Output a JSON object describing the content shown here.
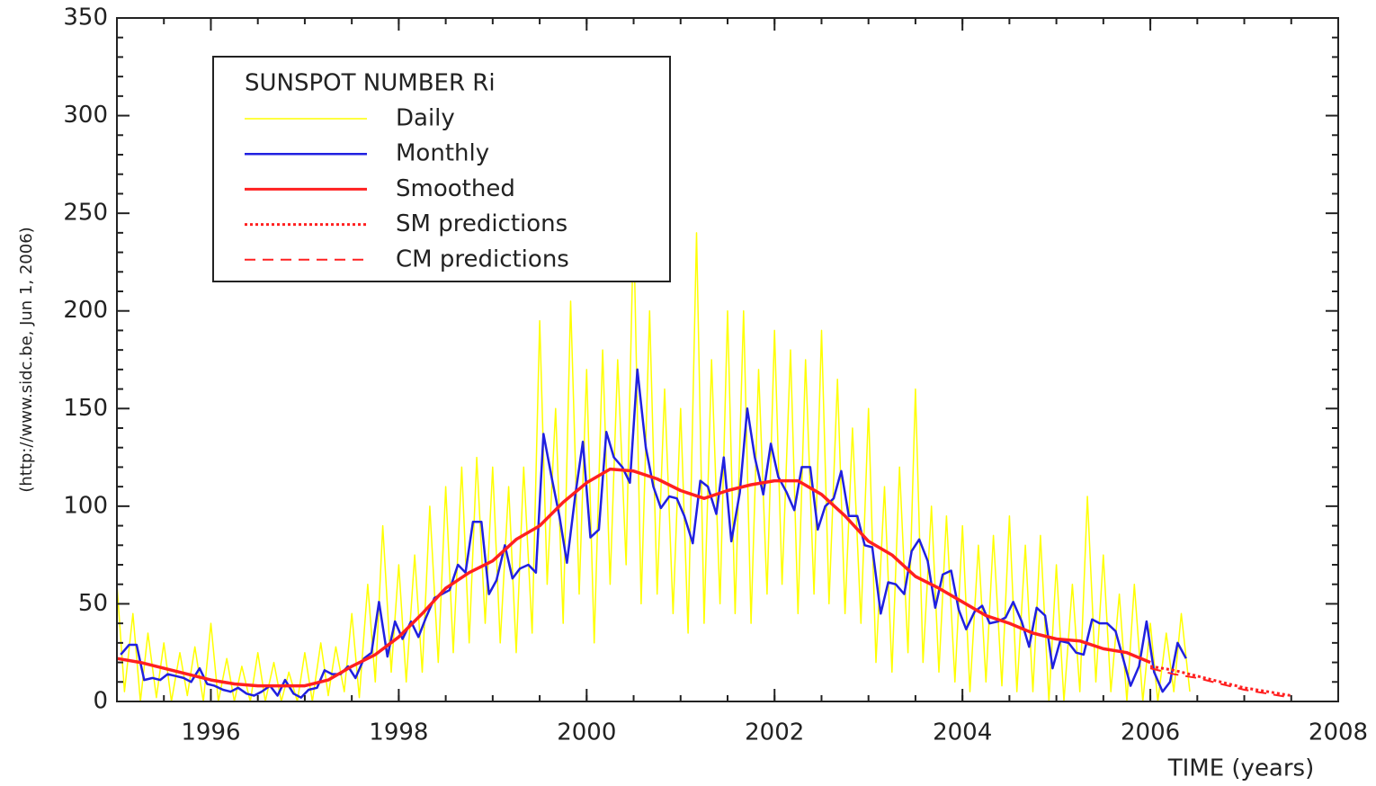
{
  "chart_data": {
    "type": "line",
    "legend_title": "SUNSPOT NUMBER Ri",
    "x_label": "TIME (years)",
    "y_label": "(http://www.sidc.be, Jun  1, 2006)",
    "xlim": [
      1995,
      2008
    ],
    "ylim": [
      0,
      350
    ],
    "xticks": [
      1996,
      1998,
      2000,
      2002,
      2004,
      2006,
      2008
    ],
    "yticks": [
      0,
      50,
      100,
      150,
      200,
      250,
      300,
      350
    ],
    "legend": "upper left",
    "series": [
      {
        "name": "Daily",
        "color": "#ffff00",
        "style": "solid",
        "width": 1.5,
        "x": [
          1995,
          1995.08,
          1995.17,
          1995.25,
          1995.33,
          1995.42,
          1995.5,
          1995.58,
          1995.67,
          1995.75,
          1995.83,
          1995.92,
          1996,
          1996.08,
          1996.17,
          1996.25,
          1996.33,
          1996.42,
          1996.5,
          1996.58,
          1996.67,
          1996.75,
          1996.83,
          1996.92,
          1997,
          1997.08,
          1997.17,
          1997.25,
          1997.33,
          1997.42,
          1997.5,
          1997.58,
          1997.67,
          1997.75,
          1997.83,
          1997.92,
          1998,
          1998.08,
          1998.17,
          1998.25,
          1998.33,
          1998.42,
          1998.5,
          1998.58,
          1998.67,
          1998.75,
          1998.83,
          1998.92,
          1999,
          1999.08,
          1999.17,
          1999.25,
          1999.33,
          1999.42,
          1999.5,
          1999.58,
          1999.67,
          1999.75,
          1999.83,
          1999.92,
          2000,
          2000.08,
          2000.17,
          2000.25,
          2000.33,
          2000.42,
          2000.5,
          2000.58,
          2000.67,
          2000.75,
          2000.83,
          2000.92,
          2001,
          2001.08,
          2001.17,
          2001.25,
          2001.33,
          2001.42,
          2001.5,
          2001.58,
          2001.67,
          2001.75,
          2001.83,
          2001.92,
          2002,
          2002.08,
          2002.17,
          2002.25,
          2002.33,
          2002.42,
          2002.5,
          2002.58,
          2002.67,
          2002.75,
          2002.83,
          2002.92,
          2003,
          2003.08,
          2003.17,
          2003.25,
          2003.33,
          2003.42,
          2003.5,
          2003.58,
          2003.67,
          2003.75,
          2003.83,
          2003.92,
          2004,
          2004.08,
          2004.17,
          2004.25,
          2004.33,
          2004.42,
          2004.5,
          2004.58,
          2004.67,
          2004.75,
          2004.83,
          2004.92,
          2005,
          2005.08,
          2005.17,
          2005.25,
          2005.33,
          2005.42,
          2005.5,
          2005.58,
          2005.67,
          2005.75,
          2005.83,
          2005.92,
          2006,
          2006.08,
          2006.17,
          2006.25,
          2006.33,
          2006.42
        ],
        "values": [
          60,
          5,
          45,
          0,
          35,
          2,
          30,
          0,
          25,
          3,
          28,
          0,
          40,
          0,
          22,
          0,
          18,
          0,
          25,
          0,
          20,
          0,
          15,
          0,
          25,
          0,
          30,
          3,
          28,
          5,
          45,
          2,
          60,
          10,
          90,
          15,
          70,
          10,
          75,
          15,
          100,
          20,
          110,
          25,
          120,
          30,
          125,
          40,
          120,
          30,
          110,
          25,
          120,
          35,
          195,
          60,
          150,
          40,
          205,
          55,
          170,
          30,
          180,
          60,
          175,
          70,
          245,
          50,
          200,
          55,
          160,
          45,
          150,
          35,
          240,
          40,
          175,
          50,
          200,
          45,
          200,
          40,
          170,
          55,
          190,
          60,
          180,
          45,
          175,
          55,
          190,
          50,
          165,
          45,
          140,
          40,
          150,
          20,
          110,
          15,
          120,
          25,
          160,
          20,
          100,
          15,
          95,
          10,
          90,
          5,
          80,
          10,
          85,
          8,
          95,
          5,
          80,
          5,
          85,
          0,
          70,
          0,
          60,
          5,
          105,
          10,
          75,
          5,
          55,
          0,
          60,
          0,
          40,
          0,
          35,
          5,
          45,
          5
        ]
      },
      {
        "name": "Monthly",
        "color": "#2020e0",
        "style": "solid",
        "width": 2.5,
        "x": [
          1995.04,
          1995.13,
          1995.21,
          1995.29,
          1995.38,
          1995.46,
          1995.54,
          1995.63,
          1995.71,
          1995.79,
          1995.88,
          1995.96,
          1996.04,
          1996.13,
          1996.21,
          1996.29,
          1996.38,
          1996.46,
          1996.54,
          1996.63,
          1996.71,
          1996.79,
          1996.88,
          1996.96,
          1997.04,
          1997.13,
          1997.21,
          1997.29,
          1997.38,
          1997.46,
          1997.54,
          1997.63,
          1997.71,
          1997.79,
          1997.88,
          1997.96,
          1998.04,
          1998.13,
          1998.21,
          1998.29,
          1998.38,
          1998.46,
          1998.54,
          1998.63,
          1998.71,
          1998.79,
          1998.88,
          1998.96,
          1999.04,
          1999.13,
          1999.21,
          1999.29,
          1999.38,
          1999.46,
          1999.54,
          1999.63,
          1999.71,
          1999.79,
          1999.88,
          1999.96,
          2000.04,
          2000.13,
          2000.21,
          2000.29,
          2000.38,
          2000.46,
          2000.54,
          2000.63,
          2000.71,
          2000.79,
          2000.88,
          2000.96,
          2001.04,
          2001.13,
          2001.21,
          2001.29,
          2001.38,
          2001.46,
          2001.54,
          2001.63,
          2001.71,
          2001.79,
          2001.88,
          2001.96,
          2002.04,
          2002.13,
          2002.21,
          2002.29,
          2002.38,
          2002.46,
          2002.54,
          2002.63,
          2002.71,
          2002.79,
          2002.88,
          2002.96,
          2003.04,
          2003.13,
          2003.21,
          2003.29,
          2003.38,
          2003.46,
          2003.54,
          2003.63,
          2003.71,
          2003.79,
          2003.88,
          2003.96,
          2004.04,
          2004.13,
          2004.21,
          2004.29,
          2004.38,
          2004.46,
          2004.54,
          2004.63,
          2004.71,
          2004.79,
          2004.88,
          2004.96,
          2005.04,
          2005.13,
          2005.21,
          2005.29,
          2005.38,
          2005.46,
          2005.54,
          2005.63,
          2005.71,
          2005.79,
          2005.88,
          2005.96,
          2006.04,
          2006.13,
          2006.21,
          2006.29,
          2006.38
        ],
        "values": [
          24,
          29,
          29,
          11,
          12,
          11,
          14,
          13,
          12,
          10,
          17,
          9,
          8,
          6,
          5,
          7,
          4,
          3,
          5,
          8,
          3,
          11,
          4,
          2,
          6,
          7,
          16,
          14,
          14,
          18,
          12,
          22,
          25,
          51,
          23,
          41,
          32,
          41,
          33,
          43,
          53,
          55,
          57,
          70,
          66,
          92,
          92,
          55,
          62,
          80,
          63,
          68,
          70,
          66,
          137,
          114,
          95,
          71,
          106,
          133,
          84,
          88,
          138,
          125,
          120,
          112,
          170,
          130,
          110,
          99,
          105,
          104,
          95,
          81,
          113,
          110,
          96,
          125,
          82,
          107,
          150,
          125,
          106,
          132,
          115,
          107,
          98,
          120,
          120,
          88,
          100,
          104,
          118,
          95,
          95,
          80,
          79,
          45,
          61,
          60,
          55,
          77,
          83,
          72,
          48,
          65,
          67,
          47,
          37,
          46,
          49,
          40,
          41,
          43,
          51,
          41,
          28,
          48,
          44,
          17,
          31,
          30,
          25,
          24,
          42,
          40,
          40,
          36,
          22,
          8,
          18,
          41,
          15,
          5,
          10,
          30,
          22
        ]
      },
      {
        "name": "Smoothed",
        "color": "#ff2020",
        "style": "solid",
        "width": 3.5,
        "x": [
          1995,
          1995.25,
          1995.5,
          1995.75,
          1996,
          1996.25,
          1996.5,
          1996.75,
          1997,
          1997.25,
          1997.5,
          1997.75,
          1998,
          1998.25,
          1998.5,
          1998.75,
          1999,
          1999.25,
          1999.5,
          1999.75,
          2000,
          2000.25,
          2000.5,
          2000.75,
          2001,
          2001.25,
          2001.5,
          2001.75,
          2002,
          2002.25,
          2002.5,
          2002.75,
          2003,
          2003.25,
          2003.5,
          2003.75,
          2004,
          2004.25,
          2004.5,
          2004.75,
          2005,
          2005.25,
          2005.5,
          2005.75,
          2006
        ],
        "values": [
          22,
          20,
          17,
          14,
          11,
          9,
          8,
          8,
          8,
          11,
          18,
          24,
          33,
          45,
          58,
          66,
          72,
          83,
          90,
          102,
          112,
          119,
          118,
          114,
          108,
          104,
          108,
          111,
          113,
          113,
          106,
          95,
          82,
          75,
          64,
          58,
          51,
          44,
          40,
          35,
          32,
          31,
          27,
          25,
          20
        ]
      },
      {
        "name": "SM predictions",
        "color": "#ff2020",
        "style": "dotted",
        "width": 3,
        "x": [
          2006,
          2006.25,
          2006.5,
          2006.75,
          2007,
          2007.25,
          2007.5
        ],
        "values": [
          18,
          16,
          13,
          10,
          7,
          5,
          3
        ]
      },
      {
        "name": "CM predictions",
        "color": "#ff2020",
        "style": "dashed",
        "width": 2,
        "x": [
          2006,
          2006.25,
          2006.5,
          2006.75,
          2007,
          2007.25,
          2007.5
        ],
        "values": [
          17,
          14,
          12,
          9,
          6,
          4,
          2
        ]
      }
    ]
  }
}
